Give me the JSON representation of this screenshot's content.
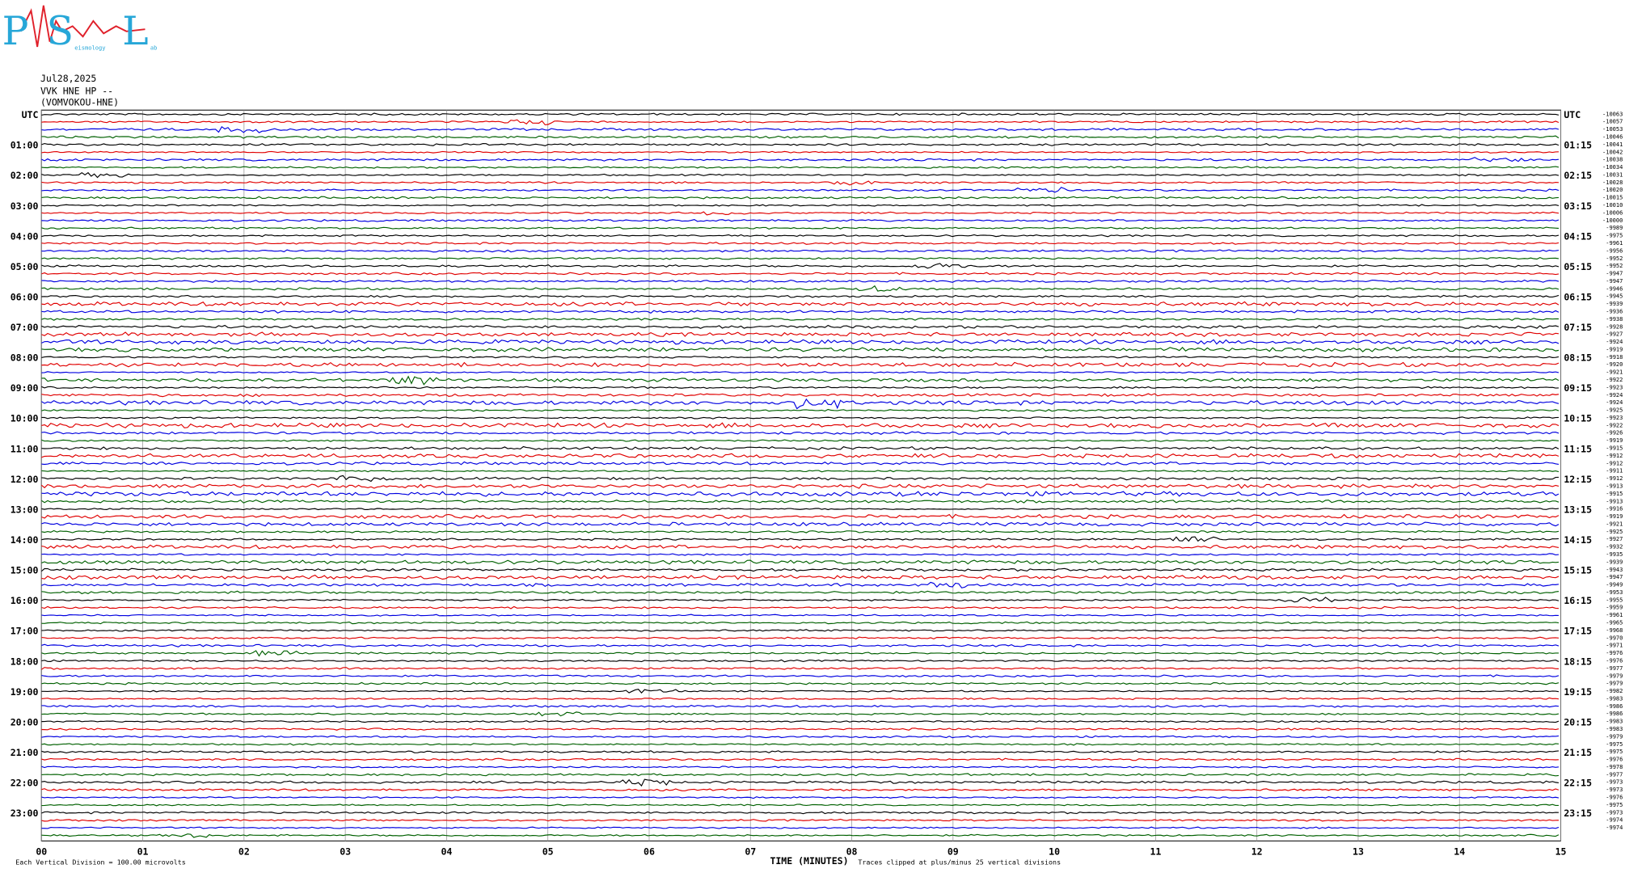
{
  "header": {
    "logo": {
      "p": "P",
      "s": "S",
      "l": "L",
      "middle": "eismology",
      "end": "ab"
    },
    "date": "Jul28,2025",
    "station": "VVK HNE HP --",
    "location": "(VOMVOKOU-HNE)"
  },
  "left_labels": [
    "UTC",
    "01:00",
    "02:00",
    "03:00",
    "04:00",
    "05:00",
    "06:00",
    "07:00",
    "08:00",
    "09:00",
    "10:00",
    "11:00",
    "12:00",
    "13:00",
    "14:00",
    "15:00",
    "16:00",
    "17:00",
    "18:00",
    "19:00",
    "20:00",
    "21:00",
    "22:00",
    "23:00"
  ],
  "right_labels": [
    "UTC",
    "01:15",
    "02:15",
    "03:15",
    "04:15",
    "05:15",
    "06:15",
    "07:15",
    "08:15",
    "09:15",
    "10:15",
    "11:15",
    "12:15",
    "13:15",
    "14:15",
    "15:15",
    "16:15",
    "17:15",
    "18:15",
    "19:15",
    "20:15",
    "21:15",
    "22:15",
    "23:15"
  ],
  "right_offsets": [
    "-10063",
    "-10057",
    "-10053",
    "-10046",
    "-10041",
    "-10042",
    "-10038",
    "-10034",
    "-10031",
    "-10028",
    "-10020",
    "-10015",
    "-10010",
    "-10006",
    "-10000",
    "-9989",
    "-9975",
    "-9961",
    "-9956",
    "-9952",
    "-9952",
    "-9947",
    "-9947",
    "-9946",
    "-9945",
    "-9939",
    "-9936",
    "-9938",
    "-9928",
    "-9927",
    "-9924",
    "-9919",
    "-9918",
    "-9920",
    "-9921",
    "-9922",
    "-9923",
    "-9924",
    "-9924",
    "-9925",
    "-9923",
    "-9922",
    "-9926",
    "-9919",
    "-9915",
    "-9912",
    "-9912",
    "-9911",
    "-9912",
    "-9913",
    "-9915",
    "-9913",
    "-9916",
    "-9919",
    "-9921",
    "-9925",
    "-9927",
    "-9932",
    "-9935",
    "-9939",
    "-9943",
    "-9947",
    "-9949",
    "-9953",
    "-9955",
    "-9959",
    "-9961",
    "-9965",
    "-9968",
    "-9970",
    "-9971",
    "-9976",
    "-9976",
    "-9977",
    "-9979",
    "-9979",
    "-9982",
    "-9983",
    "-9986",
    "-9986",
    "-9983",
    "-9983",
    "-9979",
    "-9975",
    "-9975",
    "-9976",
    "-9978",
    "-9977",
    "-9973",
    "-9973",
    "-9976",
    "-9975",
    "-9973",
    "-9974",
    "-9974"
  ],
  "x_labels": [
    "00",
    "01",
    "02",
    "03",
    "04",
    "05",
    "06",
    "07",
    "08",
    "09",
    "10",
    "11",
    "12",
    "13",
    "14",
    "15"
  ],
  "footer": {
    "scale": "Each Vertical Division =  100.00 microvolts",
    "axis_title": "TIME (MINUTES)",
    "clip_note": "Traces clipped at plus/minus 25 vertical divisions"
  }
}
